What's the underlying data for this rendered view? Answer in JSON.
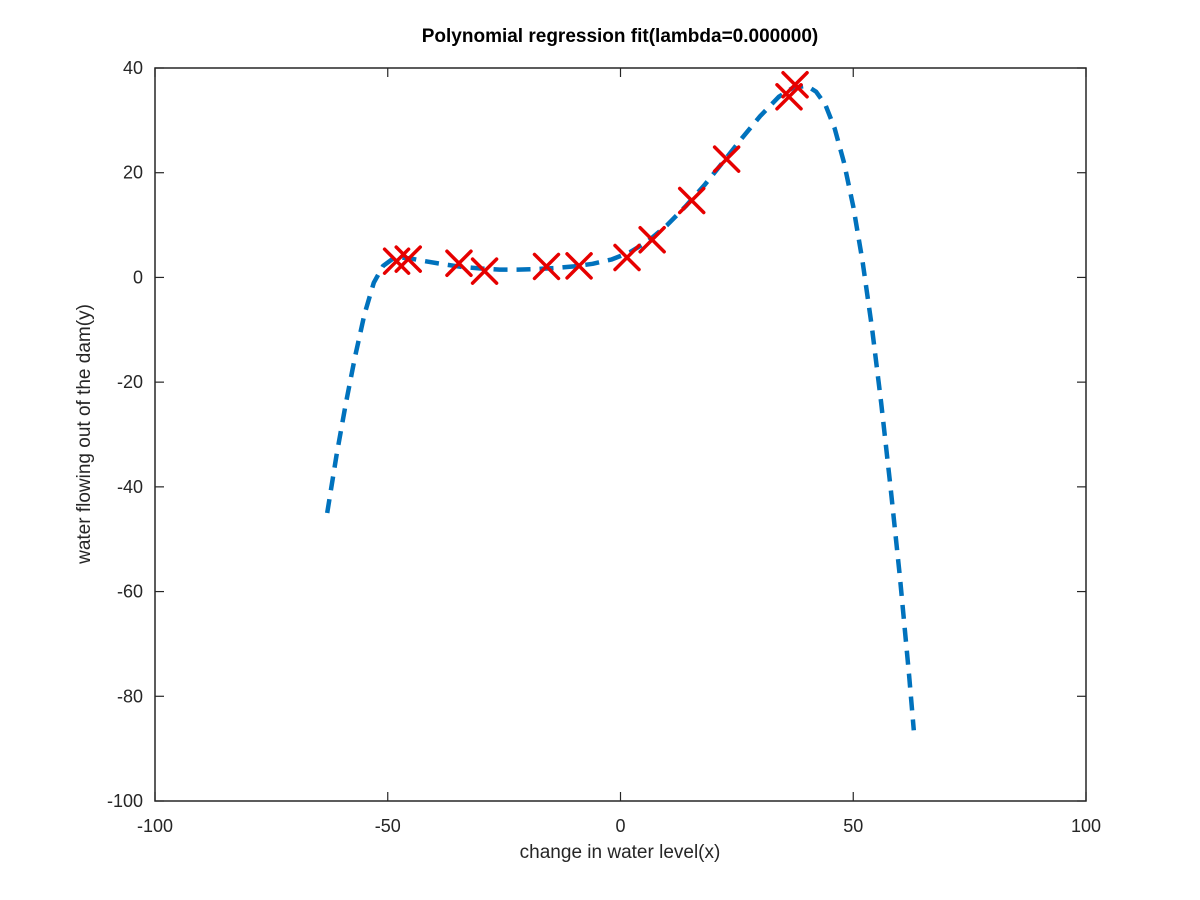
{
  "chart_data": {
    "type": "scatter",
    "title": "Polynomial regression fit(lambda=0.000000)",
    "xlabel": "change in water level(x)",
    "ylabel": "water flowing out of the dam(y)",
    "xlim": [
      -100,
      100
    ],
    "ylim": [
      -100,
      40
    ],
    "xticks": [
      -100,
      -50,
      0,
      50,
      100
    ],
    "yticks": [
      -100,
      -80,
      -60,
      -40,
      -20,
      0,
      20,
      40
    ],
    "grid": false,
    "legend": "none",
    "colors": {
      "points": "#e60000",
      "fit": "#0072bd",
      "axes": "#262626"
    },
    "series": [
      {
        "kind": "points",
        "marker": "x",
        "x": [
          -48.1,
          -45.6,
          -34.7,
          -29.2,
          -15.9,
          -8.9,
          1.4,
          6.8,
          15.3,
          22.8,
          36.2,
          37.5
        ],
        "y": [
          3.1,
          3.5,
          2.7,
          1.2,
          2.1,
          2.2,
          3.8,
          7.2,
          14.7,
          22.6,
          34.5,
          36.8
        ]
      },
      {
        "kind": "fit",
        "line": "dashed",
        "x": [
          -63,
          -61,
          -59,
          -57,
          -55,
          -53,
          -51,
          -49,
          -47,
          -45,
          -42,
          -38,
          -34,
          -30,
          -26,
          -22,
          -18,
          -14,
          -10,
          -6,
          -2,
          2,
          6,
          10,
          14,
          18,
          22,
          26,
          30,
          34,
          37,
          40,
          42,
          44,
          46,
          48,
          50,
          52,
          54,
          56,
          58,
          60,
          62,
          63
        ],
        "y": [
          -45,
          -34,
          -24,
          -15,
          -7,
          -1,
          2.2,
          3.5,
          3.8,
          3.6,
          3.1,
          2.5,
          2.0,
          1.7,
          1.5,
          1.5,
          1.6,
          1.8,
          2.1,
          2.6,
          3.4,
          4.8,
          7.0,
          10.0,
          13.6,
          17.6,
          22.0,
          26.5,
          30.8,
          34.5,
          36.2,
          36.6,
          35.5,
          33.0,
          28.5,
          22.0,
          13.5,
          3.0,
          -9.5,
          -24.0,
          -40.0,
          -57.0,
          -76.0,
          -86.5
        ]
      }
    ]
  }
}
